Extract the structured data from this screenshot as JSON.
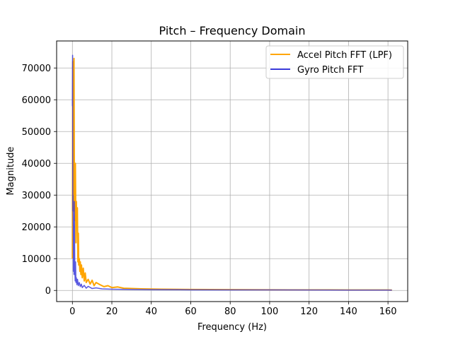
{
  "chart_data": {
    "type": "line",
    "title": "Pitch – Frequency Domain",
    "xlabel": "Frequency (Hz)",
    "ylabel": "Magnitude",
    "xlim": [
      -8,
      170
    ],
    "ylim": [
      -3500,
      78500
    ],
    "xticks": [
      0,
      20,
      40,
      60,
      80,
      100,
      120,
      140,
      160
    ],
    "yticks": [
      0,
      10000,
      20000,
      30000,
      40000,
      50000,
      60000,
      70000
    ],
    "grid": true,
    "legend_position": "top-right",
    "series": [
      {
        "name": "Accel Pitch FFT (LPF)",
        "color": "#ffa500",
        "x": [
          0,
          0.2,
          0.5,
          0.8,
          1.0,
          1.2,
          1.5,
          1.8,
          2.0,
          2.2,
          2.5,
          2.8,
          3.0,
          3.2,
          3.5,
          3.8,
          4.0,
          4.3,
          4.6,
          5.0,
          5.5,
          6.0,
          6.5,
          7.0,
          8.0,
          9.0,
          10.0,
          11.0,
          12.0,
          14.0,
          16.0,
          18.0,
          20.0,
          23.0,
          26.0,
          30.0,
          35.0,
          40.0,
          45.0,
          50.0,
          60.0,
          70.0,
          80.0,
          90.0,
          100.0,
          110.0,
          120.0,
          130.0,
          140.0,
          150.0,
          160.0,
          162.0
        ],
        "values": [
          10000,
          72000,
          25000,
          73000,
          30000,
          22000,
          40000,
          15000,
          28000,
          20000,
          26000,
          9000,
          18000,
          8000,
          10000,
          6000,
          9000,
          5000,
          8000,
          4000,
          7000,
          3000,
          5500,
          2500,
          3500,
          2000,
          3200,
          1500,
          2500,
          1800,
          1200,
          1500,
          900,
          1100,
          700,
          600,
          500,
          450,
          400,
          350,
          300,
          280,
          250,
          220,
          200,
          180,
          170,
          160,
          150,
          140,
          130,
          120
        ]
      },
      {
        "name": "Gyro Pitch FFT",
        "color": "#3b3bdb",
        "x": [
          0,
          0.1,
          0.2,
          0.3,
          0.4,
          0.5,
          0.6,
          0.8,
          1.0,
          1.2,
          1.4,
          1.6,
          1.8,
          2.0,
          2.3,
          2.6,
          3.0,
          3.5,
          4.0,
          4.5,
          5.0,
          6.0,
          7.0,
          8.0,
          10.0,
          12.0,
          15.0,
          20.0,
          30.0,
          40.0,
          60.0,
          80.0,
          100.0,
          120.0,
          140.0,
          160.0,
          162.0
        ],
        "values": [
          58000,
          74000,
          25000,
          30000,
          20000,
          6000,
          15000,
          5000,
          28000,
          8000,
          3000,
          9000,
          2500,
          4000,
          1800,
          3500,
          1500,
          2500,
          1200,
          2000,
          900,
          1600,
          700,
          1300,
          600,
          800,
          500,
          400,
          300,
          250,
          200,
          180,
          160,
          140,
          120,
          100,
          90
        ]
      }
    ]
  }
}
